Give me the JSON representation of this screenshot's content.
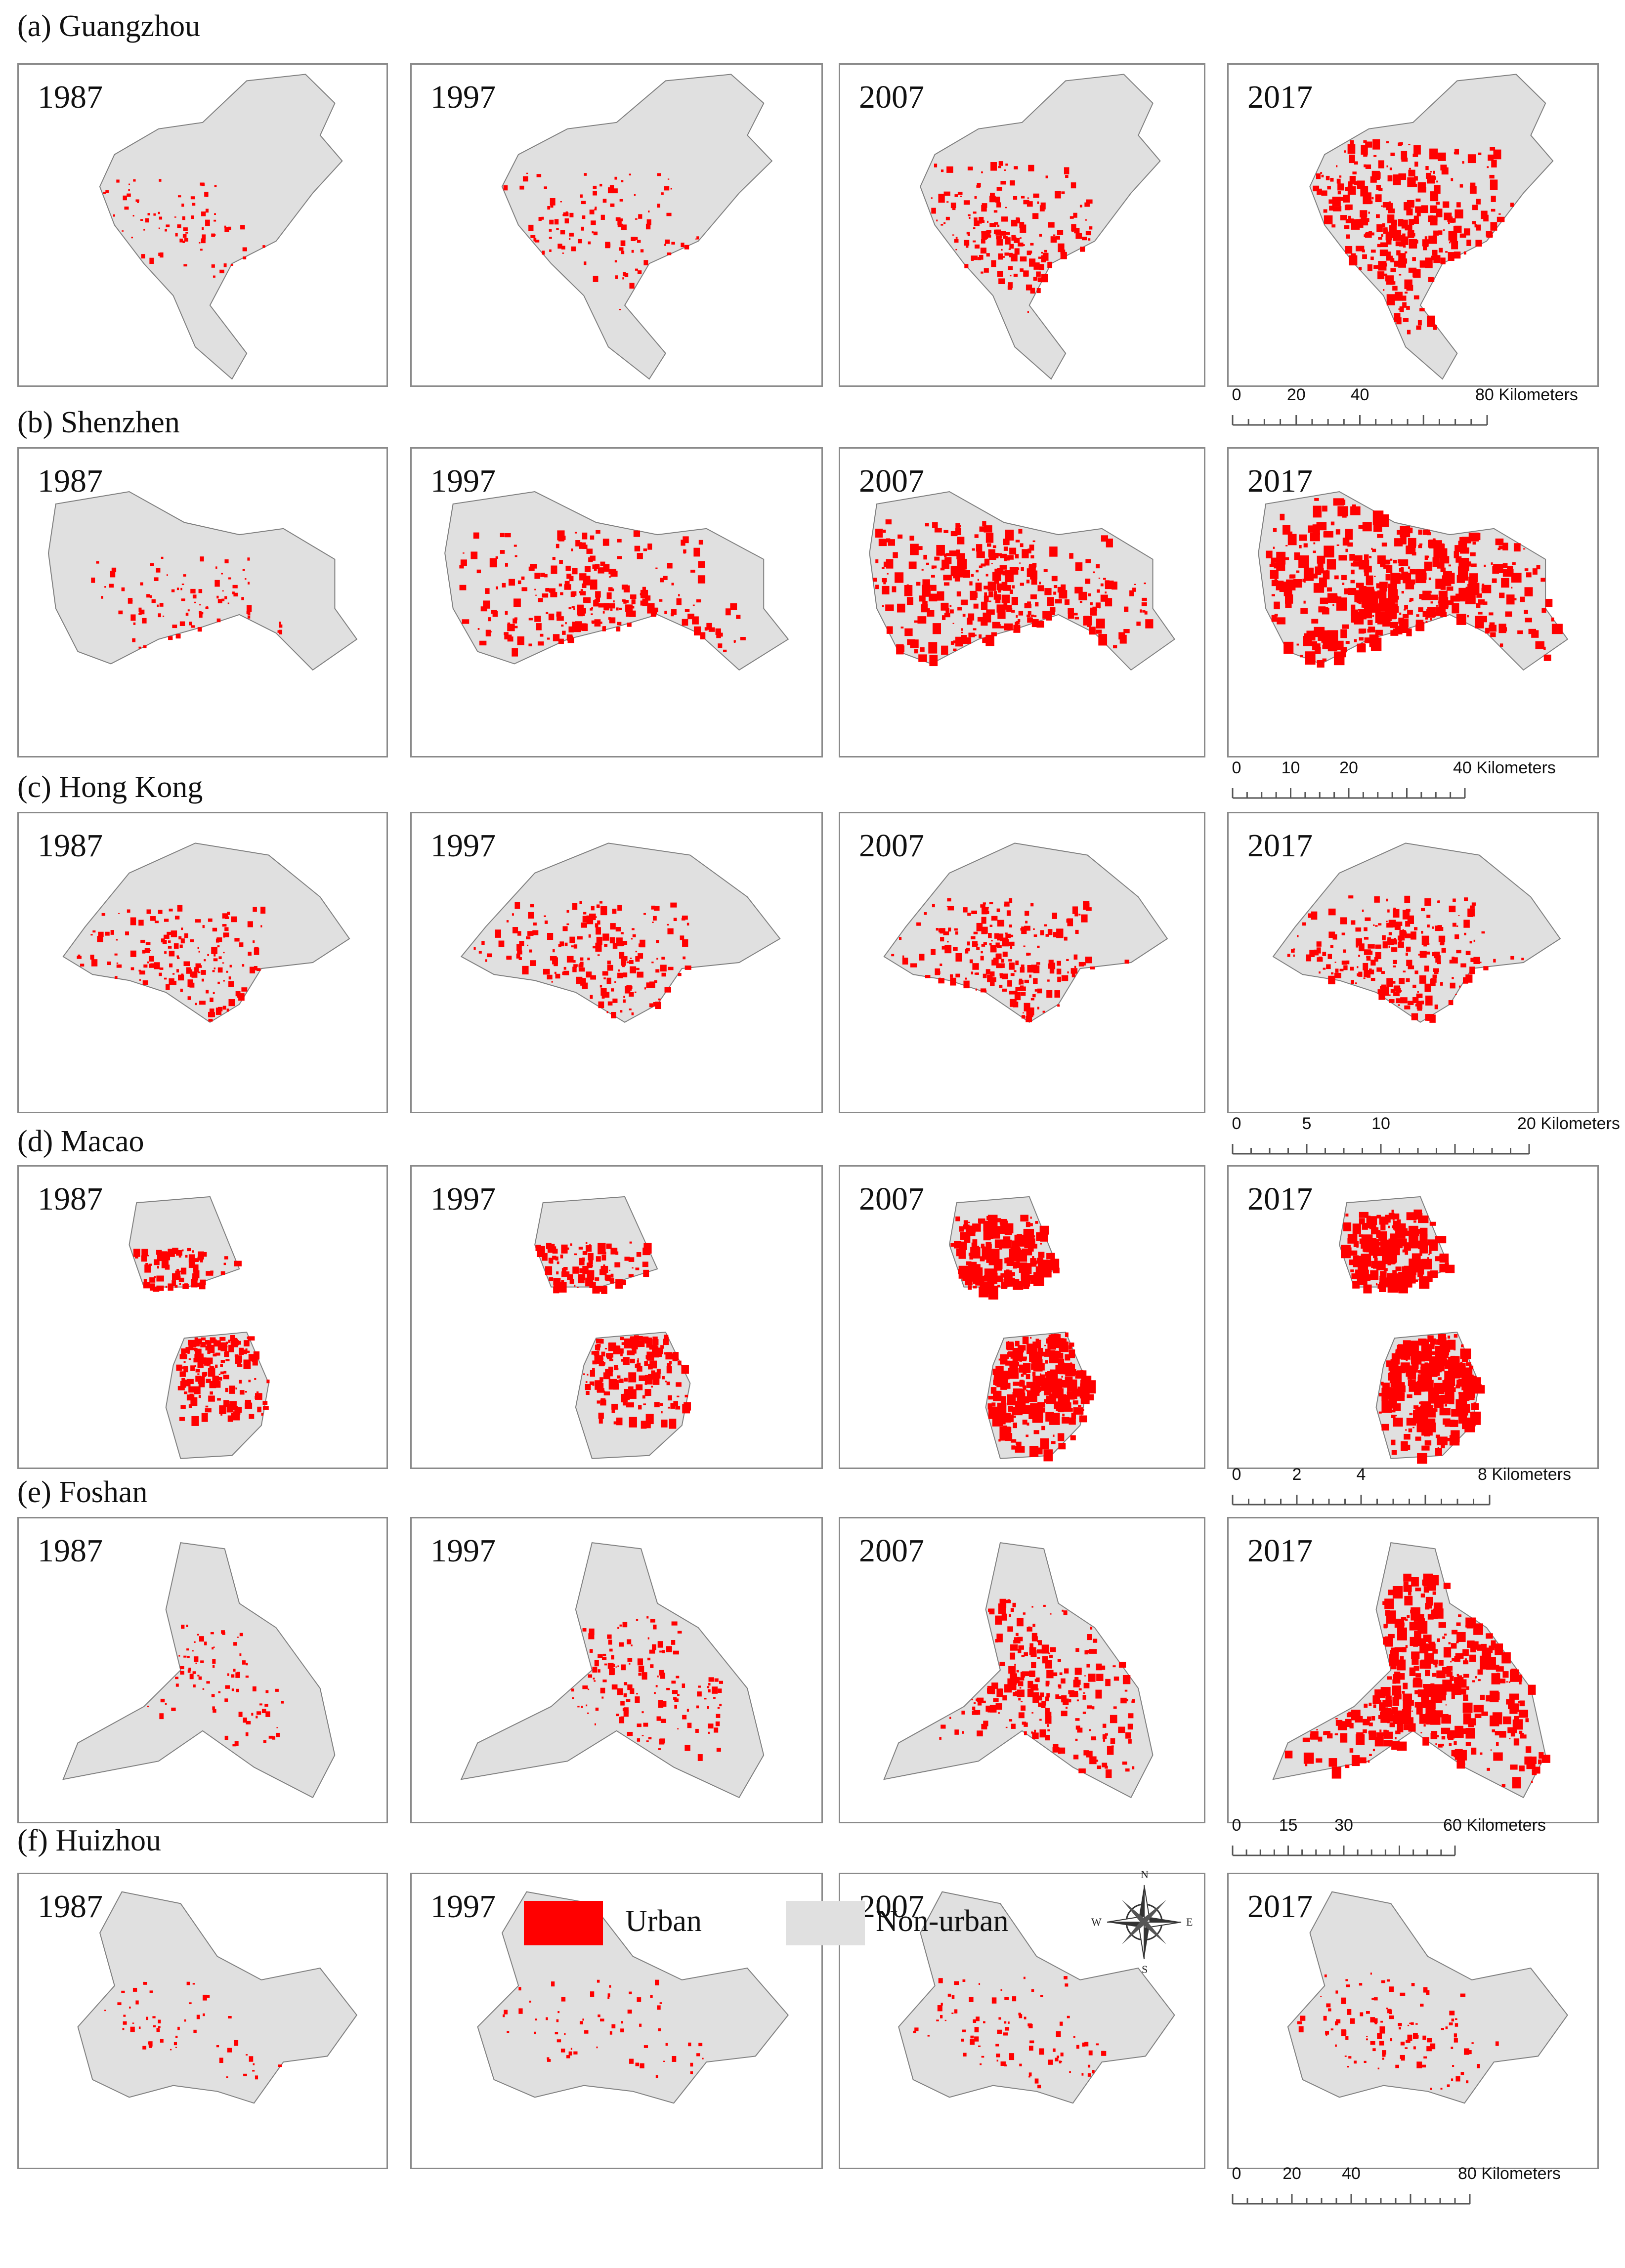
{
  "colors": {
    "urban": "#ff0000",
    "non_urban": "#e0e0e0",
    "outline": "#7f7f7f"
  },
  "cities": [
    {
      "title": "(a) Guangzhou",
      "years": [
        "1987",
        "1997",
        "2007",
        "2017"
      ],
      "urban_level": [
        0.05,
        0.1,
        0.22,
        0.4
      ],
      "scale": {
        "ticks": [
          "0",
          "20",
          "40"
        ],
        "end": "80 Kilometers"
      }
    },
    {
      "title": "(b) Shenzhen",
      "years": [
        "1987",
        "1997",
        "2007",
        "2017"
      ],
      "urban_level": [
        0.07,
        0.3,
        0.42,
        0.6
      ],
      "scale": {
        "ticks": [
          "0",
          "10",
          "20"
        ],
        "end": "40 Kilometers"
      }
    },
    {
      "title": "(c) Hong Kong",
      "years": [
        "1987",
        "1997",
        "2007",
        "2017"
      ],
      "urban_level": [
        0.18,
        0.22,
        0.25,
        0.28
      ],
      "scale": {
        "ticks": [
          "0",
          "5",
          "10"
        ],
        "end": "20 Kilometers"
      }
    },
    {
      "title": "(d) Macao",
      "years": [
        "1987",
        "1997",
        "2007",
        "2017"
      ],
      "urban_level": [
        0.3,
        0.35,
        0.6,
        0.65
      ],
      "scale": {
        "ticks": [
          "0",
          "2",
          "4"
        ],
        "end": "8 Kilometers"
      }
    },
    {
      "title": "(e) Foshan",
      "years": [
        "1987",
        "1997",
        "2007",
        "2017"
      ],
      "urban_level": [
        0.06,
        0.15,
        0.3,
        0.55
      ],
      "scale": {
        "ticks": [
          "0",
          "15",
          "30"
        ],
        "end": "60 Kilometers"
      }
    },
    {
      "title": "(f) Huizhou",
      "years": [
        "1987",
        "1997",
        "2007",
        "2017"
      ],
      "urban_level": [
        0.02,
        0.03,
        0.07,
        0.1
      ],
      "scale": {
        "ticks": [
          "0",
          "20",
          "40"
        ],
        "end": "80 Kilometers"
      }
    }
  ],
  "legend": {
    "urban_label": "Urban",
    "non_urban_label": "Non-urban"
  },
  "compass": {
    "n": "N",
    "s": "S",
    "e": "E",
    "w": "W",
    "icon": "north-arrow-compass-icon"
  }
}
